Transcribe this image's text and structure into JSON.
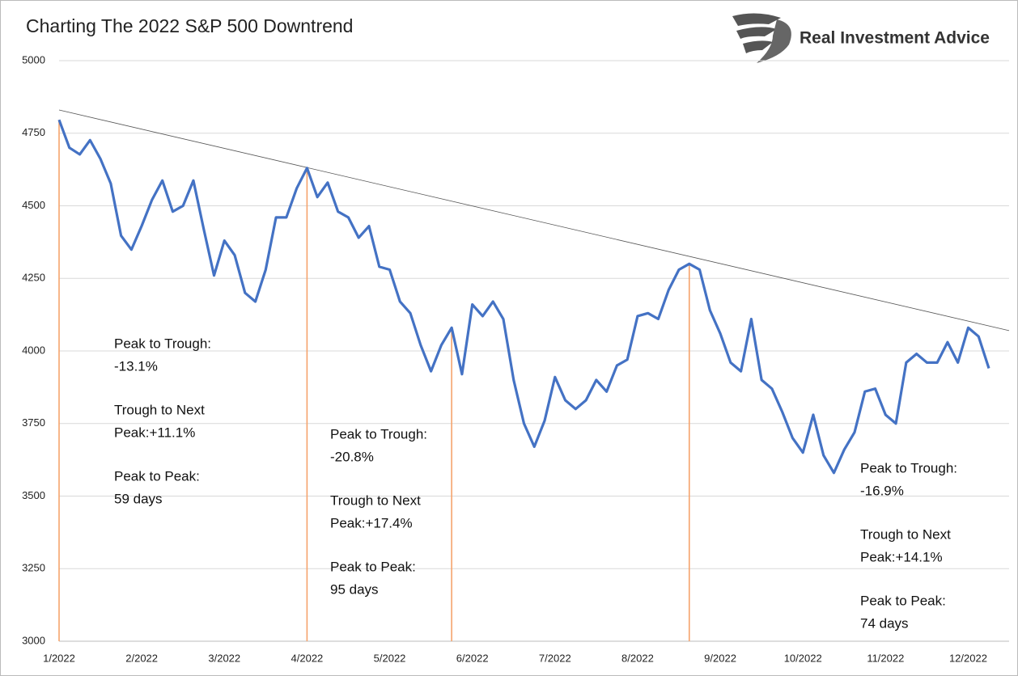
{
  "chart_data": {
    "type": "line",
    "title": "Charting The 2022 S&P 500 Downtrend",
    "brand": "Real Investment Advice",
    "categories": [
      "1/2022",
      null,
      null,
      null,
      null,
      null,
      null,
      null,
      "2/2022",
      null,
      null,
      null,
      null,
      null,
      null,
      null,
      "3/2022",
      null,
      null,
      null,
      null,
      null,
      null,
      null,
      "4/2022",
      null,
      null,
      null,
      null,
      null,
      null,
      null,
      "5/2022",
      null,
      null,
      null,
      null,
      null,
      null,
      null,
      "6/2022",
      null,
      null,
      null,
      null,
      null,
      null,
      null,
      "7/2022",
      null,
      null,
      null,
      null,
      null,
      null,
      null,
      "8/2022",
      null,
      null,
      null,
      null,
      null,
      null,
      null,
      "9/2022",
      null,
      null,
      null,
      null,
      null,
      null,
      null,
      "10/2022",
      null,
      null,
      null,
      null,
      null,
      null,
      null,
      "11/2022",
      null,
      null,
      null,
      null,
      null,
      null,
      null,
      "12/2022",
      null,
      null
    ],
    "series": [
      {
        "name": "S&P 500",
        "color": "#4472c4",
        "values": [
          4796,
          4700,
          4677,
          4726,
          4662,
          4577,
          4397,
          4349,
          4431,
          4521,
          4587,
          4480,
          4500,
          4587,
          4420,
          4260,
          4380,
          4330,
          4200,
          4170,
          4280,
          4460,
          4460,
          4560,
          4630,
          4530,
          4580,
          4480,
          4460,
          4390,
          4430,
          4290,
          4280,
          4170,
          4130,
          4020,
          3930,
          4020,
          4080,
          3920,
          4160,
          4120,
          4170,
          4110,
          3900,
          3750,
          3670,
          3760,
          3910,
          3830,
          3800,
          3830,
          3900,
          3860,
          3950,
          3970,
          4120,
          4130,
          4110,
          4210,
          4280,
          4300,
          4280,
          4140,
          4060,
          3960,
          3930,
          4110,
          3900,
          3870,
          3790,
          3700,
          3650,
          3780,
          3640,
          3580,
          3660,
          3720,
          3860,
          3870,
          3780,
          3750,
          3960,
          3990,
          3960,
          3960,
          4030,
          3960,
          4080,
          4050,
          3940
        ]
      }
    ],
    "peaks": [
      4796,
      4630,
      4300,
      4080
    ],
    "peak_color": "#f5a36c",
    "trendline": {
      "color": "#555555",
      "values": [
        4830,
        4070
      ]
    },
    "ylim": [
      3000,
      5000
    ],
    "yticks": [
      3000,
      3250,
      3500,
      3750,
      4000,
      4250,
      4500,
      4750,
      5000
    ],
    "grid": true,
    "annotations": [
      {
        "lines": [
          "Peak to Trough:",
          "-13.1%",
          "Trough to Next",
          "Peak:+11.1%",
          "Peak to Peak:",
          "59 days"
        ]
      },
      {
        "lines": [
          "Peak to Trough:",
          "-20.8%",
          "Trough to Next",
          "Peak:+17.4%",
          "Peak to Peak:",
          "95 days"
        ]
      },
      {
        "lines": [
          "Peak to Trough:",
          "-16.9%",
          "Trough to Next",
          "Peak:+14.1%",
          "Peak to Peak:",
          "74 days"
        ]
      }
    ]
  }
}
